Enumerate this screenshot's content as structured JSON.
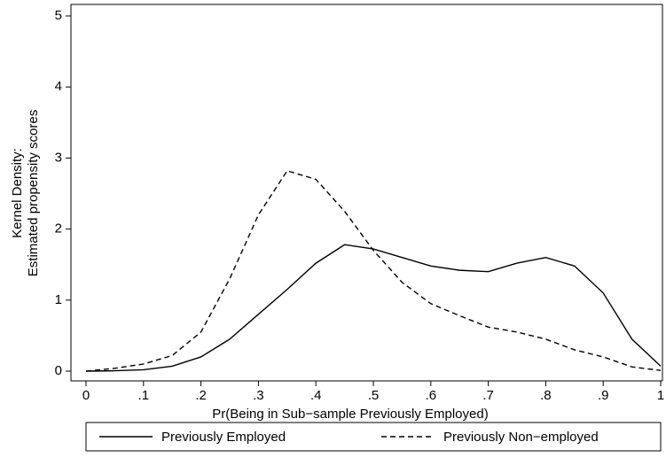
{
  "chart_data": {
    "type": "line",
    "x_label": "Pr(Being in Sub−sample Previously Employed)",
    "y_label": [
      "Kernel Density:",
      "Estimated propensity scores"
    ],
    "x": [
      0,
      0.05,
      0.1,
      0.15,
      0.2,
      0.25,
      0.3,
      0.35,
      0.4,
      0.45,
      0.5,
      0.55,
      0.6,
      0.65,
      0.7,
      0.75,
      0.8,
      0.85,
      0.9,
      0.95,
      1
    ],
    "series": [
      {
        "name": "Previously Employed",
        "color": "#000000",
        "dash": "solid",
        "values": [
          0,
          0.005,
          0.02,
          0.07,
          0.2,
          0.45,
          0.8,
          1.15,
          1.52,
          1.78,
          1.72,
          1.6,
          1.48,
          1.42,
          1.4,
          1.52,
          1.6,
          1.48,
          1.1,
          0.45,
          0.07
        ]
      },
      {
        "name": "Previously Non−employed",
        "color": "#000000",
        "dash": "dashed",
        "values": [
          0,
          0.04,
          0.1,
          0.22,
          0.55,
          1.3,
          2.2,
          2.82,
          2.7,
          2.25,
          1.7,
          1.25,
          0.95,
          0.78,
          0.62,
          0.55,
          0.45,
          0.3,
          0.2,
          0.06,
          0.01
        ]
      }
    ],
    "xlim": [
      0,
      1
    ],
    "ylim": [
      0,
      5
    ],
    "xticks": [
      0,
      {
        "value": 0.1,
        "label": ".1"
      },
      {
        "value": 0.2,
        "label": ".2"
      },
      {
        "value": 0.3,
        "label": ".3"
      },
      {
        "value": 0.4,
        "label": ".4"
      },
      {
        "value": 0.5,
        "label": ".5"
      },
      {
        "value": 0.6,
        "label": ".6"
      },
      {
        "value": 0.7,
        "label": ".7"
      },
      {
        "value": 0.8,
        "label": ".8"
      },
      {
        "value": 0.9,
        "label": ".9"
      },
      1
    ],
    "yticks": [
      0,
      1,
      2,
      3,
      4,
      5
    ],
    "grid": false,
    "legend": "bottom"
  }
}
